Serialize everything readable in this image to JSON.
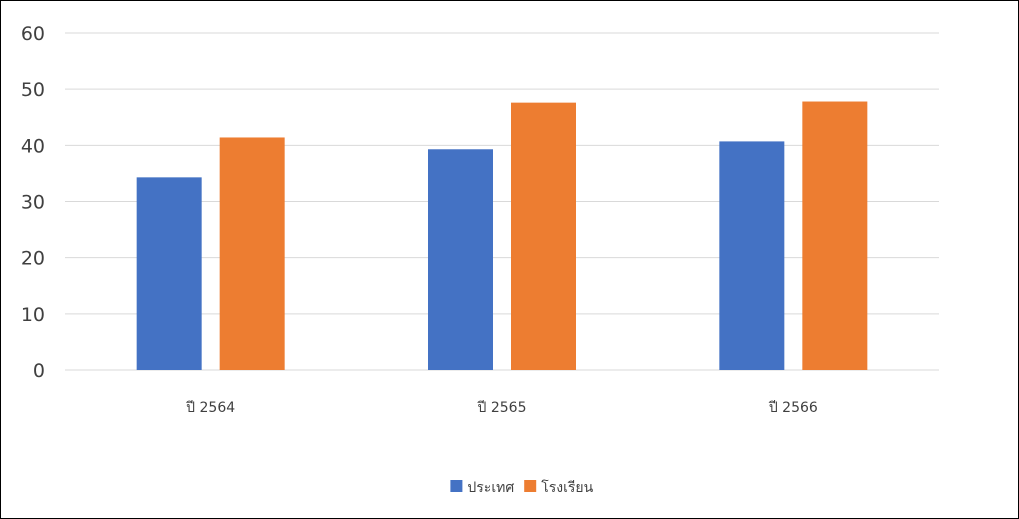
{
  "chart_data": {
    "type": "bar",
    "title": "",
    "xlabel": "",
    "ylabel": "",
    "categories": [
      "ปี 2564",
      "ปี 2565",
      "ปี 2566"
    ],
    "series": [
      {
        "name": "ประเทศ",
        "values": [
          34.3,
          39.3,
          40.7
        ],
        "color": "#4472C4"
      },
      {
        "name": "โรงเรียน",
        "values": [
          41.4,
          47.6,
          47.8
        ],
        "color": "#ED7D31"
      }
    ],
    "ylim": [
      0,
      60
    ],
    "yticks": [
      0,
      10,
      20,
      30,
      40,
      50,
      60
    ],
    "grid": true,
    "gridline_color": "#D9D9D9",
    "legend_position": "bottom"
  }
}
